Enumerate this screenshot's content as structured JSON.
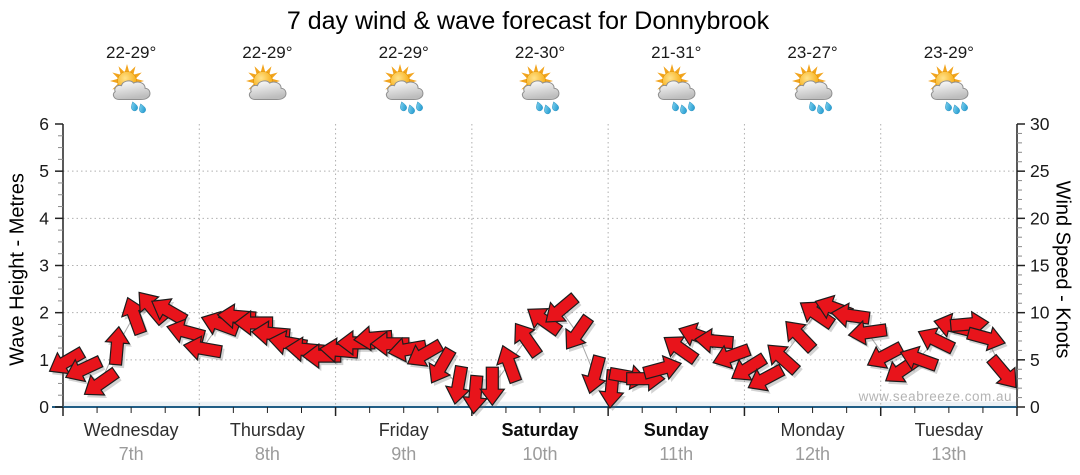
{
  "page": {
    "title": "7 day wind & wave forecast for Donnybrook",
    "watermark": "www.seabreeze.com.au"
  },
  "chart_data": {
    "type": "line",
    "title": "7 day wind & wave forecast for Donnybrook",
    "ylabel_left": "Wave Height - Metres",
    "ylabel_right": "Wind Speed - Knots",
    "y_left_axis": {
      "min": 0,
      "max": 6,
      "major_ticks": [
        0,
        1,
        2,
        3,
        4,
        5,
        6
      ],
      "minor_step": 0.25,
      "grid": "dotted"
    },
    "y_right_axis": {
      "min": 0,
      "max": 30,
      "major_ticks": [
        0,
        5,
        10,
        15,
        20,
        25,
        30
      ],
      "minor_step": 1,
      "grid": "dotted"
    },
    "days": [
      {
        "name": "Wednesday",
        "date": "7th",
        "temp": "22-29°",
        "weekend": false,
        "icon": "sun-cloud-rain",
        "rain_drops": 2
      },
      {
        "name": "Thursday",
        "date": "8th",
        "temp": "22-29°",
        "weekend": false,
        "icon": "sun-cloud",
        "rain_drops": 0
      },
      {
        "name": "Friday",
        "date": "9th",
        "temp": "22-29°",
        "weekend": false,
        "icon": "sun-cloud-rain",
        "rain_drops": 3
      },
      {
        "name": "Saturday",
        "date": "10th",
        "temp": "22-30°",
        "weekend": true,
        "icon": "sun-cloud-rain",
        "rain_drops": 3
      },
      {
        "name": "Sunday",
        "date": "11th",
        "temp": "21-31°",
        "weekend": true,
        "icon": "sun-cloud-rain",
        "rain_drops": 3
      },
      {
        "name": "Monday",
        "date": "12th",
        "temp": "23-27°",
        "weekend": false,
        "icon": "sun-cloud-rain",
        "rain_drops": 3
      },
      {
        "name": "Tuesday",
        "date": "13th",
        "temp": "23-29°",
        "weekend": false,
        "icon": "sun-cloud-rain",
        "rain_drops": 3
      }
    ],
    "wind_series": {
      "name": "Wind",
      "unit": "knots",
      "interval_hours": 3,
      "points_per_day": 8,
      "format": [
        "speed_knots",
        "arrow_rotation_deg_screen_cw_0_is_east"
      ],
      "points": [
        [
          4.8,
          150
        ],
        [
          4.0,
          155
        ],
        [
          2.5,
          145
        ],
        [
          6.5,
          275
        ],
        [
          9.7,
          250
        ],
        [
          10.6,
          230
        ],
        [
          10.2,
          210
        ],
        [
          8.0,
          195
        ],
        [
          6.2,
          190
        ],
        [
          8.8,
          200
        ],
        [
          9.6,
          185
        ],
        [
          8.9,
          180
        ],
        [
          7.8,
          185
        ],
        [
          6.8,
          190
        ],
        [
          6.1,
          185
        ],
        [
          5.4,
          180
        ],
        [
          6.0,
          185
        ],
        [
          6.8,
          180
        ],
        [
          7.3,
          175
        ],
        [
          6.7,
          180
        ],
        [
          6.1,
          170
        ],
        [
          5.6,
          150
        ],
        [
          4.3,
          120
        ],
        [
          2.3,
          100
        ],
        [
          1.3,
          95
        ],
        [
          2.2,
          90
        ],
        [
          4.6,
          250
        ],
        [
          7.2,
          235
        ],
        [
          9.2,
          215
        ],
        [
          10.3,
          140
        ],
        [
          7.8,
          125
        ],
        [
          3.4,
          105
        ],
        [
          1.9,
          95
        ],
        [
          3.2,
          10
        ],
        [
          3.0,
          0
        ],
        [
          4.1,
          345
        ],
        [
          6.2,
          215
        ],
        [
          7.6,
          200
        ],
        [
          7.0,
          185
        ],
        [
          5.4,
          160
        ],
        [
          4.1,
          148
        ],
        [
          3.0,
          152
        ],
        [
          5.2,
          222
        ],
        [
          7.6,
          226
        ],
        [
          9.9,
          214
        ],
        [
          10.5,
          200
        ],
        [
          9.7,
          188
        ],
        [
          7.9,
          172
        ],
        [
          5.4,
          152
        ],
        [
          3.9,
          146
        ],
        [
          5.1,
          200
        ],
        [
          7.1,
          206
        ],
        [
          8.6,
          194
        ],
        [
          8.8,
          355
        ],
        [
          7.3,
          15
        ],
        [
          3.6,
          50
        ]
      ]
    },
    "wave_series": {
      "name": "Wave Height",
      "unit": "m",
      "approx_constant_value": 0.05
    }
  },
  "colors": {
    "arrow_fill": "#e8141b",
    "arrow_outline": "#1c1c1c",
    "trend_line": "#a8a8a8",
    "bottom_axis": "#215e86",
    "axis": "#222222",
    "grid": "#b0b0b0",
    "minor_tick": "#8a8a8a",
    "tick_label": "#1a1a1a",
    "date_label": "#9b9b9b",
    "wave_fill": "#e7edf2"
  }
}
